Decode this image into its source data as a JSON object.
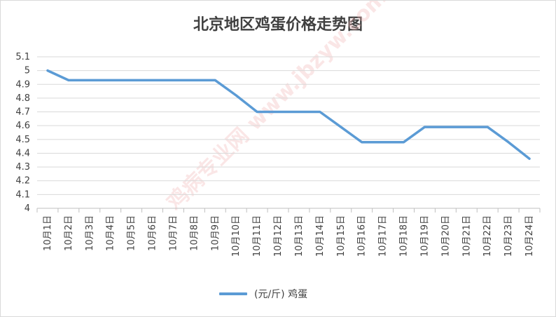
{
  "chart_data": {
    "type": "line",
    "title": "北京地区鸡蛋价格走势图",
    "categories": [
      "10月1日",
      "10月2日",
      "10月3日",
      "10月4日",
      "10月5日",
      "10月6日",
      "10月7日",
      "10月8日",
      "10月9日",
      "10月10日",
      "10月11日",
      "10月12日",
      "10月13日",
      "10月14日",
      "10月15日",
      "10月16日",
      "10月17日",
      "10月18日",
      "10月19日",
      "10月20日",
      "10月21日",
      "10月22日",
      "10月23日",
      "10月24日"
    ],
    "series": [
      {
        "name": "(元/斤) 鸡蛋",
        "values": [
          5.0,
          4.93,
          4.93,
          4.93,
          4.93,
          4.93,
          4.93,
          4.93,
          4.93,
          4.82,
          4.7,
          4.7,
          4.7,
          4.7,
          4.59,
          4.48,
          4.48,
          4.48,
          4.59,
          4.59,
          4.59,
          4.59,
          4.48,
          4.36
        ]
      }
    ],
    "ylim": [
      4,
      5.1
    ],
    "yticks": [
      "4",
      "4.1",
      "4.2",
      "4.3",
      "4.4",
      "4.5",
      "4.6",
      "4.7",
      "4.8",
      "4.9",
      "5",
      "5.1"
    ],
    "grid": true,
    "legend_position": "bottom",
    "line_color": "#5b9bd5"
  },
  "watermark": "鸡病专业网 www.jbzyw.com 行业之径"
}
